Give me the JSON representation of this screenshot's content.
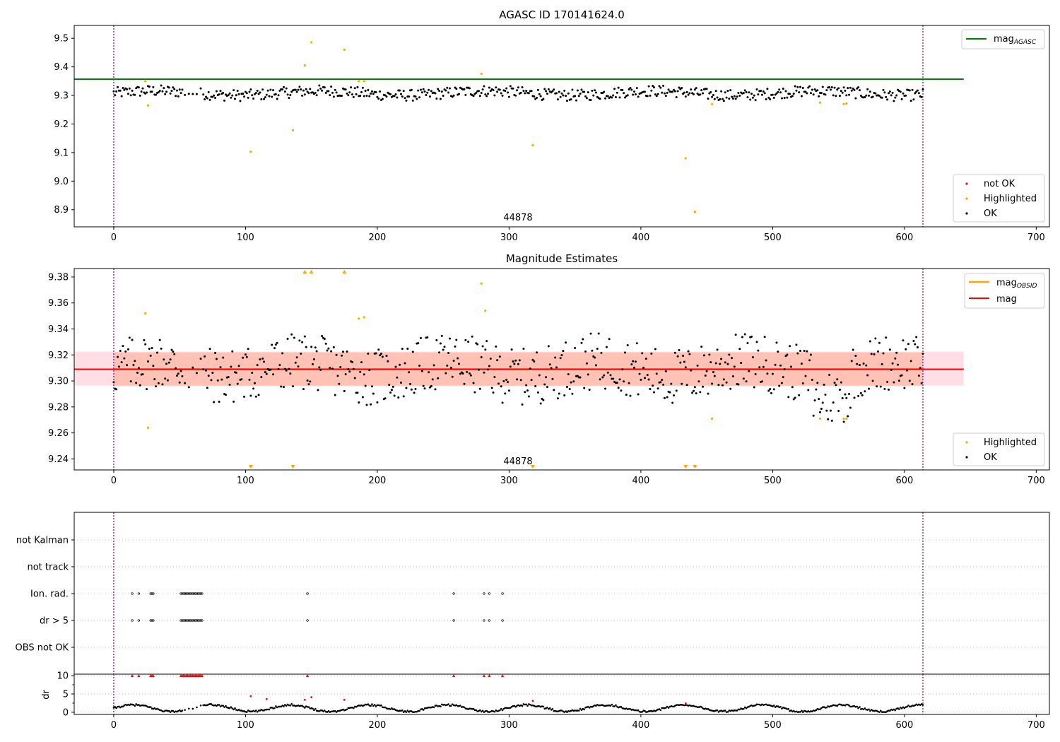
{
  "colors": {
    "ok": "#000000",
    "highlighted": "#ffa500",
    "not_ok": "#ff0000",
    "agasc_line": "#008000",
    "mag_line": "#ff0000",
    "obsid_line": "#ffa500",
    "boundary_line": "#800080",
    "band_pink": "#ffc0cb",
    "band_orange": "#ffa07a"
  },
  "chart_data": [
    {
      "type": "scatter",
      "title": "AGASC ID 170141624.0",
      "obsid_label": "44878",
      "xlim": [
        -30,
        710
      ],
      "ylim": [
        8.84,
        9.545
      ],
      "x_ticks": [
        "0",
        "100",
        "200",
        "300",
        "400",
        "500",
        "600",
        "700"
      ],
      "y_ticks": [
        "8.9",
        "9.0",
        "9.1",
        "9.2",
        "9.3",
        "9.4",
        "9.5"
      ],
      "vertical_lines": [
        0,
        614
      ],
      "mag_agasc": 9.357,
      "line_legend": {
        "name": "mag",
        "sub": "AGASC"
      },
      "point_legend": [
        "not OK",
        "Highlighted",
        "OK"
      ],
      "highlighted": [
        [
          24,
          9.35
        ],
        [
          26,
          9.265
        ],
        [
          104,
          9.103
        ],
        [
          136,
          9.178
        ],
        [
          145,
          9.405
        ],
        [
          150,
          9.486
        ],
        [
          175,
          9.46
        ],
        [
          186,
          9.35
        ],
        [
          190,
          9.35
        ],
        [
          279,
          9.376
        ],
        [
          318,
          9.126
        ],
        [
          434,
          9.08
        ],
        [
          441,
          8.893
        ],
        [
          454,
          9.27
        ],
        [
          536,
          9.275
        ],
        [
          554,
          9.27
        ],
        [
          556,
          9.272
        ]
      ]
    },
    {
      "type": "scatter",
      "title": "Magnitude Estimates",
      "obsid_label": "44878",
      "xlim": [
        -30,
        710
      ],
      "ylim": [
        9.2315,
        9.3865
      ],
      "x_ticks": [
        "0",
        "100",
        "200",
        "300",
        "400",
        "500",
        "600",
        "700"
      ],
      "y_ticks": [
        "9.24",
        "9.26",
        "9.28",
        "9.30",
        "9.32",
        "9.34",
        "9.36",
        "9.38"
      ],
      "vertical_lines": [
        0,
        614
      ],
      "mag": 9.309,
      "band_outer": [
        9.2965,
        9.3225
      ],
      "band_inner": [
        9.296,
        9.322
      ],
      "line_legend": [
        {
          "name": "mag",
          "sub": "OBSID"
        },
        {
          "name": "mag",
          "sub": ""
        }
      ],
      "point_legend": [
        "Highlighted",
        "OK"
      ],
      "highlighted": [
        [
          24,
          9.352
        ],
        [
          26,
          9.264
        ],
        [
          186,
          9.348
        ],
        [
          190,
          9.349
        ],
        [
          279,
          9.375
        ],
        [
          282,
          9.354
        ],
        [
          454,
          9.271
        ],
        [
          536,
          9.271
        ],
        [
          554,
          9.271
        ],
        [
          556,
          9.271
        ]
      ],
      "clipped_high": [
        145,
        150,
        175
      ],
      "clipped_low": [
        104,
        136,
        318,
        434,
        441
      ]
    },
    {
      "type": "scatter",
      "title": "",
      "xlim": [
        -30,
        710
      ],
      "categories": [
        "not Kalman",
        "not track",
        "Ion. rad.",
        "dr > 5",
        "OBS not OK"
      ],
      "x_ticks": [
        "0",
        "100",
        "200",
        "300",
        "400",
        "500",
        "600",
        "700"
      ],
      "vertical_lines": [
        0,
        614
      ],
      "flag_x": [
        14,
        19,
        28,
        29,
        30,
        51,
        52,
        53,
        54,
        55,
        56,
        57,
        58,
        59,
        60,
        61,
        62,
        63,
        64,
        65,
        66,
        67,
        147,
        258,
        281,
        285,
        295
      ],
      "flags": {
        "not Kalman": false,
        "not track": false,
        "Ion. rad.": true,
        "dr > 5": true,
        "OBS not OK": false
      }
    },
    {
      "type": "scatter",
      "ylabel": "dr",
      "xlim": [
        -30,
        710
      ],
      "ylim": [
        -0.6,
        10.4
      ],
      "y_ticks": [
        "0",
        "5",
        "10"
      ],
      "x_ticks": [
        "0",
        "100",
        "200",
        "300",
        "400",
        "500",
        "600",
        "700"
      ],
      "vertical_lines": [
        0,
        614
      ],
      "clip_at": 10,
      "red_points": [
        [
          104,
          4.4
        ],
        [
          116,
          3.6
        ],
        [
          145,
          3.4
        ],
        [
          150,
          4.1
        ],
        [
          175,
          3.4
        ],
        [
          318,
          3.1
        ],
        [
          434,
          2.4
        ]
      ]
    }
  ]
}
